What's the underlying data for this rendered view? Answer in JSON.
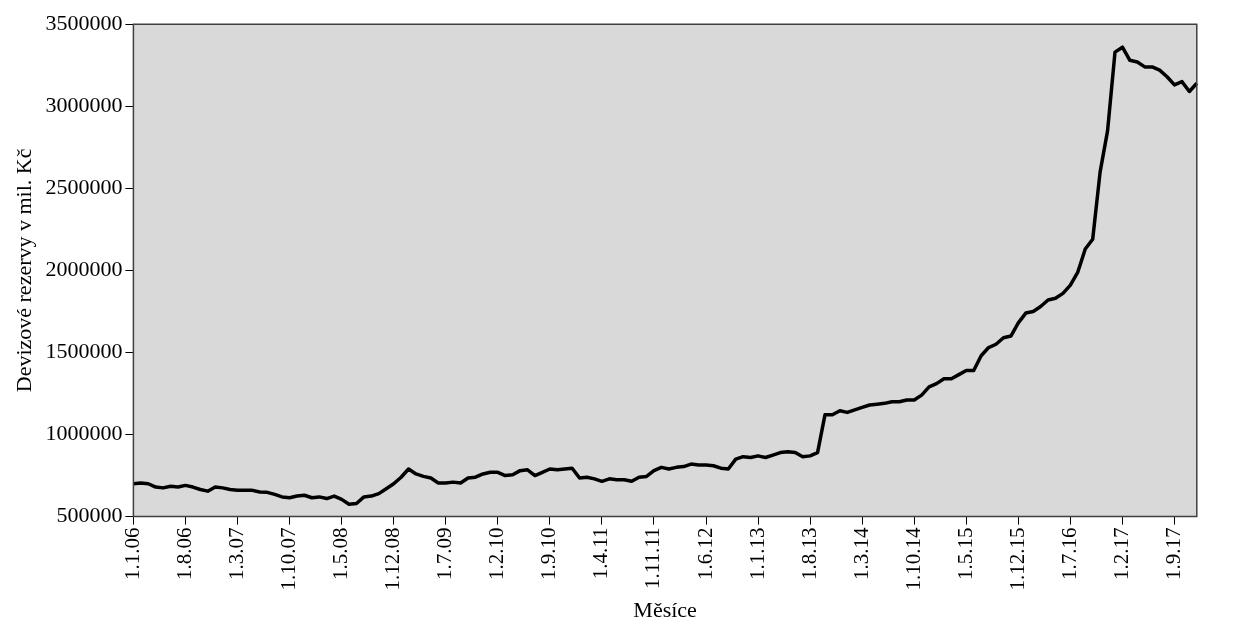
{
  "chart_data": {
    "type": "line",
    "xlabel": "Měsíce",
    "ylabel": "Devizové rezervy v mil. Kč",
    "marker": "none",
    "line_style": "solid",
    "color": "#000000",
    "categories": [
      "1.1.06",
      null,
      null,
      null,
      null,
      null,
      null,
      "1.8.06",
      null,
      null,
      null,
      null,
      null,
      null,
      "1.3.07",
      null,
      null,
      null,
      null,
      null,
      null,
      "1.10.07",
      null,
      null,
      null,
      null,
      null,
      null,
      "1.5.08",
      null,
      null,
      null,
      null,
      null,
      null,
      "1.12.08",
      null,
      null,
      null,
      null,
      null,
      null,
      "1.7.09",
      null,
      null,
      null,
      null,
      null,
      null,
      "1.2.10",
      null,
      null,
      null,
      null,
      null,
      null,
      "1.9.10",
      null,
      null,
      null,
      null,
      null,
      null,
      "1.4.11",
      null,
      null,
      null,
      null,
      null,
      null,
      "1.11.11",
      null,
      null,
      null,
      null,
      null,
      null,
      "1.6.12",
      null,
      null,
      null,
      null,
      null,
      null,
      "1.1.13",
      null,
      null,
      null,
      null,
      null,
      null,
      "1.8.13",
      null,
      null,
      null,
      null,
      null,
      null,
      "1.3.14",
      null,
      null,
      null,
      null,
      null,
      null,
      "1.10.14",
      null,
      null,
      null,
      null,
      null,
      null,
      "1.5.15",
      null,
      null,
      null,
      null,
      null,
      null,
      "1.12.15",
      null,
      null,
      null,
      null,
      null,
      null,
      "1.7.16",
      null,
      null,
      null,
      null,
      null,
      null,
      "1.2.17",
      null,
      null,
      null,
      null,
      null,
      null,
      "1.9.17",
      null,
      null,
      null
    ],
    "values": [
      700000,
      705000,
      700000,
      680000,
      675000,
      685000,
      680000,
      690000,
      680000,
      665000,
      655000,
      680000,
      675000,
      665000,
      660000,
      660000,
      660000,
      650000,
      648000,
      635000,
      620000,
      615000,
      625000,
      630000,
      615000,
      620000,
      610000,
      625000,
      605000,
      575000,
      580000,
      620000,
      625000,
      640000,
      670000,
      700000,
      740000,
      790000,
      760000,
      745000,
      735000,
      705000,
      705000,
      710000,
      705000,
      735000,
      740000,
      760000,
      770000,
      770000,
      750000,
      755000,
      780000,
      785000,
      750000,
      770000,
      790000,
      785000,
      790000,
      795000,
      735000,
      740000,
      730000,
      715000,
      730000,
      725000,
      725000,
      715000,
      740000,
      745000,
      780000,
      800000,
      790000,
      800000,
      805000,
      820000,
      815000,
      815000,
      810000,
      795000,
      790000,
      850000,
      865000,
      860000,
      870000,
      860000,
      875000,
      890000,
      895000,
      890000,
      865000,
      870000,
      890000,
      1120000,
      1120000,
      1145000,
      1135000,
      1150000,
      1165000,
      1180000,
      1185000,
      1190000,
      1200000,
      1200000,
      1210000,
      1210000,
      1240000,
      1290000,
      1310000,
      1340000,
      1340000,
      1365000,
      1390000,
      1390000,
      1480000,
      1530000,
      1550000,
      1590000,
      1600000,
      1680000,
      1740000,
      1750000,
      1780000,
      1820000,
      1830000,
      1860000,
      1910000,
      1990000,
      2130000,
      2190000,
      2600000,
      2850000,
      3330000,
      3360000,
      3280000,
      3270000,
      3240000,
      3240000,
      3220000,
      3180000,
      3130000,
      3150000,
      3090000,
      3140000
    ],
    "ylim": [
      500000,
      3500000
    ],
    "yticks": [
      500000,
      1000000,
      1500000,
      2000000,
      2500000,
      3000000,
      3500000
    ]
  }
}
